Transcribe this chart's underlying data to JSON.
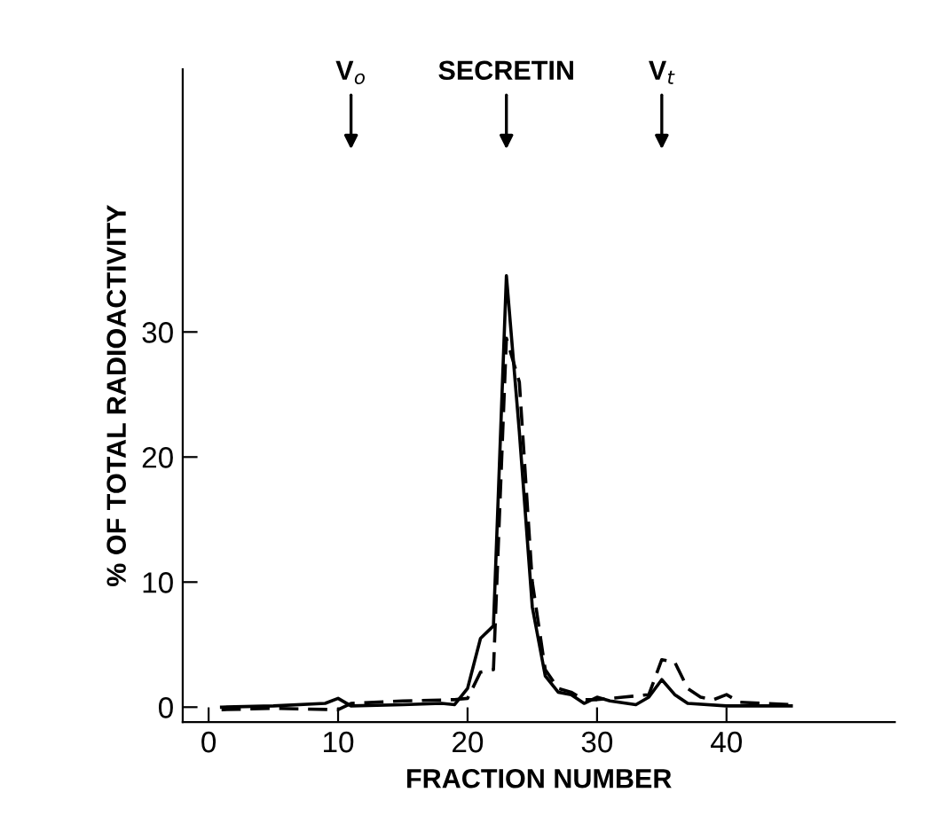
{
  "chart_data": {
    "type": "line",
    "xlabel": "FRACTION NUMBER",
    "ylabel": "% OF TOTAL RADIOACTIVITY",
    "xlim": [
      -2,
      53
    ],
    "ylim": [
      -1.2,
      51
    ],
    "xticks": [
      0,
      10,
      20,
      30,
      40
    ],
    "yticks": [
      0,
      10,
      20,
      30
    ],
    "grid": false,
    "legend": false,
    "marker": "none",
    "series": [
      {
        "color": "#000000",
        "line_style": "solid",
        "x": [
          1,
          5,
          9,
          10,
          11,
          15,
          18,
          19,
          20,
          21,
          22,
          23,
          24,
          25,
          26,
          27,
          28,
          29,
          30,
          31,
          33,
          34,
          35,
          36,
          37,
          40,
          45
        ],
        "values": [
          0.0,
          0.1,
          0.3,
          0.7,
          0.1,
          0.2,
          0.3,
          0.2,
          1.5,
          5.5,
          6.5,
          34.5,
          22,
          8,
          2.5,
          1.2,
          1.0,
          0.3,
          0.8,
          0.5,
          0.2,
          0.8,
          2.2,
          1.0,
          0.3,
          0.1,
          0.1
        ]
      },
      {
        "color": "#000000",
        "line_style": "dashed",
        "x": [
          1,
          5,
          10,
          11,
          15,
          19,
          20,
          21,
          22,
          23,
          24,
          25,
          26,
          27,
          28,
          29,
          30,
          32,
          34,
          35,
          36,
          37,
          38,
          39,
          40,
          41,
          45
        ],
        "values": [
          -0.2,
          -0.1,
          -0.2,
          0.3,
          0.5,
          0.6,
          0.7,
          2.8,
          3.0,
          29.5,
          26,
          10,
          3,
          1.5,
          1.2,
          0.6,
          0.6,
          0.8,
          1.0,
          3.8,
          3.6,
          1.5,
          0.8,
          0.6,
          1.0,
          0.4,
          0.2
        ]
      }
    ],
    "annotations": [
      {
        "text": "V$_{o}$",
        "x": 11
      },
      {
        "text": "SECRETIN",
        "x": 23
      },
      {
        "text": "V$_{t}$",
        "x": 35
      }
    ]
  }
}
